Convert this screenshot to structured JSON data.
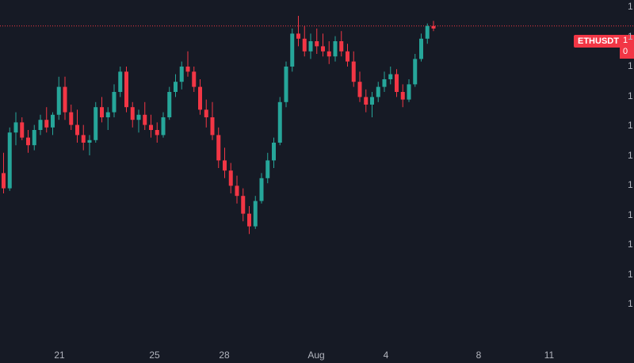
{
  "symbol": "ETHUSDT",
  "colors": {
    "background": "#161a25",
    "up": "#26a69a",
    "down": "#f23645",
    "text": "#b2b5be"
  },
  "price_badge": {
    "line1": "1",
    "line2": "0"
  },
  "y_axis_glyphs": [
    "1",
    "1",
    "1",
    "1",
    "1",
    "1",
    "1",
    "1",
    "1",
    "1",
    "1"
  ],
  "x_axis_labels": [
    "21",
    "25",
    "28",
    "Aug",
    "4",
    "8",
    "11"
  ],
  "chart_data": {
    "type": "candlestick",
    "symbol": "ETHUSDT",
    "x_ticks": [
      "21",
      "25",
      "28",
      "Aug",
      "4",
      "8",
      "11"
    ],
    "current_price_line": 0.96,
    "ohlc_relative": [
      [
        0.38,
        0.46,
        0.3,
        0.32
      ],
      [
        0.32,
        0.56,
        0.31,
        0.54
      ],
      [
        0.54,
        0.62,
        0.49,
        0.58
      ],
      [
        0.58,
        0.6,
        0.51,
        0.52
      ],
      [
        0.52,
        0.55,
        0.46,
        0.49
      ],
      [
        0.49,
        0.57,
        0.47,
        0.55
      ],
      [
        0.55,
        0.61,
        0.53,
        0.59
      ],
      [
        0.59,
        0.64,
        0.54,
        0.56
      ],
      [
        0.56,
        0.62,
        0.53,
        0.61
      ],
      [
        0.61,
        0.76,
        0.59,
        0.72
      ],
      [
        0.72,
        0.76,
        0.59,
        0.62
      ],
      [
        0.62,
        0.65,
        0.55,
        0.57
      ],
      [
        0.57,
        0.63,
        0.5,
        0.53
      ],
      [
        0.53,
        0.57,
        0.47,
        0.5
      ],
      [
        0.5,
        0.53,
        0.45,
        0.51
      ],
      [
        0.51,
        0.66,
        0.5,
        0.64
      ],
      [
        0.64,
        0.68,
        0.58,
        0.6
      ],
      [
        0.6,
        0.64,
        0.55,
        0.62
      ],
      [
        0.62,
        0.73,
        0.6,
        0.7
      ],
      [
        0.7,
        0.8,
        0.68,
        0.78
      ],
      [
        0.78,
        0.8,
        0.62,
        0.64
      ],
      [
        0.64,
        0.66,
        0.56,
        0.59
      ],
      [
        0.59,
        0.63,
        0.54,
        0.61
      ],
      [
        0.61,
        0.66,
        0.55,
        0.57
      ],
      [
        0.57,
        0.61,
        0.52,
        0.55
      ],
      [
        0.55,
        0.58,
        0.5,
        0.53
      ],
      [
        0.53,
        0.62,
        0.52,
        0.6
      ],
      [
        0.6,
        0.72,
        0.59,
        0.7
      ],
      [
        0.7,
        0.77,
        0.68,
        0.74
      ],
      [
        0.74,
        0.82,
        0.71,
        0.8
      ],
      [
        0.8,
        0.86,
        0.76,
        0.78
      ],
      [
        0.78,
        0.8,
        0.7,
        0.72
      ],
      [
        0.72,
        0.75,
        0.61,
        0.63
      ],
      [
        0.63,
        0.67,
        0.56,
        0.6
      ],
      [
        0.6,
        0.66,
        0.51,
        0.53
      ],
      [
        0.53,
        0.56,
        0.4,
        0.43
      ],
      [
        0.43,
        0.48,
        0.36,
        0.39
      ],
      [
        0.39,
        0.42,
        0.3,
        0.33
      ],
      [
        0.33,
        0.37,
        0.26,
        0.29
      ],
      [
        0.29,
        0.32,
        0.19,
        0.22
      ],
      [
        0.22,
        0.25,
        0.14,
        0.17
      ],
      [
        0.17,
        0.29,
        0.16,
        0.27
      ],
      [
        0.27,
        0.38,
        0.26,
        0.36
      ],
      [
        0.36,
        0.46,
        0.34,
        0.43
      ],
      [
        0.43,
        0.52,
        0.4,
        0.5
      ],
      [
        0.5,
        0.68,
        0.49,
        0.66
      ],
      [
        0.66,
        0.82,
        0.64,
        0.8
      ],
      [
        0.8,
        0.95,
        0.78,
        0.93
      ],
      [
        0.93,
        1.0,
        0.88,
        0.91
      ],
      [
        0.91,
        0.96,
        0.84,
        0.86
      ],
      [
        0.86,
        0.93,
        0.83,
        0.9
      ],
      [
        0.9,
        0.95,
        0.85,
        0.88
      ],
      [
        0.88,
        0.93,
        0.84,
        0.86
      ],
      [
        0.86,
        0.9,
        0.81,
        0.84
      ],
      [
        0.84,
        0.92,
        0.82,
        0.9
      ],
      [
        0.9,
        0.94,
        0.84,
        0.86
      ],
      [
        0.86,
        0.89,
        0.8,
        0.82
      ],
      [
        0.82,
        0.86,
        0.72,
        0.74
      ],
      [
        0.74,
        0.78,
        0.66,
        0.68
      ],
      [
        0.68,
        0.71,
        0.62,
        0.65
      ],
      [
        0.65,
        0.7,
        0.6,
        0.68
      ],
      [
        0.68,
        0.74,
        0.66,
        0.72
      ],
      [
        0.72,
        0.78,
        0.7,
        0.75
      ],
      [
        0.75,
        0.8,
        0.73,
        0.77
      ],
      [
        0.77,
        0.79,
        0.68,
        0.7
      ],
      [
        0.7,
        0.73,
        0.64,
        0.67
      ],
      [
        0.67,
        0.75,
        0.66,
        0.73
      ],
      [
        0.73,
        0.85,
        0.72,
        0.83
      ],
      [
        0.83,
        0.93,
        0.82,
        0.91
      ],
      [
        0.91,
        0.97,
        0.89,
        0.96
      ],
      [
        0.96,
        0.98,
        0.94,
        0.95
      ]
    ]
  }
}
